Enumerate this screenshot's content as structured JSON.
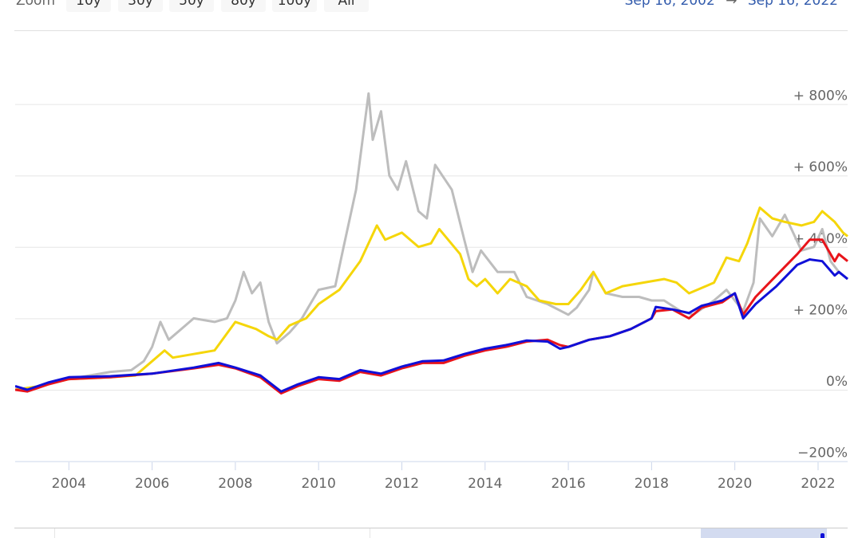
{
  "toolbar": {
    "zoom_label": "Zoom",
    "buttons": [
      "10y",
      "30y",
      "50y",
      "80y",
      "100y",
      "All"
    ],
    "range_from": "Sep 16, 2002",
    "range_arrow": "→",
    "range_to": "Sep 16, 2022"
  },
  "chart_data": {
    "type": "line",
    "title": "",
    "xlabel": "",
    "ylabel": "",
    "xlim": [
      2002.71,
      2022.71
    ],
    "ylim": [
      -200,
      900
    ],
    "grid": true,
    "legend": "none",
    "x_ticks": [
      "2004",
      "2006",
      "2008",
      "2010",
      "2012",
      "2014",
      "2016",
      "2018",
      "2020",
      "2022"
    ],
    "x_tick_values": [
      2004,
      2006,
      2008,
      2010,
      2012,
      2014,
      2016,
      2018,
      2020,
      2022
    ],
    "y_ticks": [
      "+ 800%",
      "+ 600%",
      "+ 400%",
      "+ 200%",
      "0%",
      "−200%"
    ],
    "y_tick_values": [
      800,
      600,
      400,
      200,
      0,
      -200
    ],
    "series": [
      {
        "name": "gray",
        "color": "#bdbdbd",
        "points": [
          [
            2002.71,
            0
          ],
          [
            2003.3,
            10
          ],
          [
            2004,
            30
          ],
          [
            2004.5,
            40
          ],
          [
            2005,
            50
          ],
          [
            2005.5,
            55
          ],
          [
            2005.8,
            80
          ],
          [
            2006,
            120
          ],
          [
            2006.2,
            190
          ],
          [
            2006.4,
            140
          ],
          [
            2006.6,
            160
          ],
          [
            2006.8,
            180
          ],
          [
            2007,
            200
          ],
          [
            2007.5,
            190
          ],
          [
            2007.8,
            200
          ],
          [
            2008,
            250
          ],
          [
            2008.2,
            330
          ],
          [
            2008.4,
            270
          ],
          [
            2008.6,
            300
          ],
          [
            2008.8,
            190
          ],
          [
            2009,
            130
          ],
          [
            2009.3,
            160
          ],
          [
            2009.6,
            200
          ],
          [
            2009.8,
            240
          ],
          [
            2010,
            280
          ],
          [
            2010.4,
            290
          ],
          [
            2010.6,
            400
          ],
          [
            2010.9,
            560
          ],
          [
            2011.2,
            830
          ],
          [
            2011.3,
            700
          ],
          [
            2011.5,
            780
          ],
          [
            2011.7,
            600
          ],
          [
            2011.9,
            560
          ],
          [
            2012.1,
            640
          ],
          [
            2012.4,
            500
          ],
          [
            2012.6,
            480
          ],
          [
            2012.8,
            630
          ],
          [
            2013.2,
            560
          ],
          [
            2013.5,
            420
          ],
          [
            2013.7,
            330
          ],
          [
            2013.9,
            390
          ],
          [
            2014.3,
            330
          ],
          [
            2014.7,
            330
          ],
          [
            2015,
            260
          ],
          [
            2015.5,
            240
          ],
          [
            2016,
            210
          ],
          [
            2016.2,
            230
          ],
          [
            2016.5,
            280
          ],
          [
            2016.6,
            330
          ],
          [
            2016.9,
            270
          ],
          [
            2017.3,
            260
          ],
          [
            2017.7,
            260
          ],
          [
            2018,
            250
          ],
          [
            2018.3,
            250
          ],
          [
            2018.7,
            220
          ],
          [
            2019,
            210
          ],
          [
            2019.5,
            250
          ],
          [
            2019.8,
            280
          ],
          [
            2020.2,
            220
          ],
          [
            2020.45,
            300
          ],
          [
            2020.6,
            480
          ],
          [
            2020.9,
            430
          ],
          [
            2021.2,
            490
          ],
          [
            2021.4,
            440
          ],
          [
            2021.6,
            390
          ],
          [
            2021.9,
            400
          ],
          [
            2022.1,
            450
          ],
          [
            2022.3,
            360
          ],
          [
            2022.5,
            330
          ],
          [
            2022.71,
            310
          ]
        ]
      },
      {
        "name": "yellow",
        "color": "#f5d60a",
        "points": [
          [
            2002.71,
            0
          ],
          [
            2003.3,
            10
          ],
          [
            2004,
            30
          ],
          [
            2005,
            35
          ],
          [
            2005.6,
            40
          ],
          [
            2006,
            80
          ],
          [
            2006.3,
            110
          ],
          [
            2006.5,
            90
          ],
          [
            2007,
            100
          ],
          [
            2007.5,
            110
          ],
          [
            2008,
            190
          ],
          [
            2008.5,
            170
          ],
          [
            2008.8,
            150
          ],
          [
            2009,
            140
          ],
          [
            2009.3,
            180
          ],
          [
            2009.7,
            200
          ],
          [
            2010,
            240
          ],
          [
            2010.5,
            280
          ],
          [
            2011,
            360
          ],
          [
            2011.4,
            460
          ],
          [
            2011.6,
            420
          ],
          [
            2012,
            440
          ],
          [
            2012.4,
            400
          ],
          [
            2012.7,
            410
          ],
          [
            2012.9,
            450
          ],
          [
            2013.4,
            380
          ],
          [
            2013.6,
            310
          ],
          [
            2013.8,
            290
          ],
          [
            2014,
            310
          ],
          [
            2014.3,
            270
          ],
          [
            2014.6,
            310
          ],
          [
            2015,
            290
          ],
          [
            2015.3,
            250
          ],
          [
            2015.7,
            240
          ],
          [
            2016,
            240
          ],
          [
            2016.3,
            280
          ],
          [
            2016.6,
            330
          ],
          [
            2016.9,
            270
          ],
          [
            2017.3,
            290
          ],
          [
            2017.8,
            300
          ],
          [
            2018.3,
            310
          ],
          [
            2018.6,
            300
          ],
          [
            2018.9,
            270
          ],
          [
            2019.5,
            300
          ],
          [
            2019.8,
            370
          ],
          [
            2020.1,
            360
          ],
          [
            2020.3,
            410
          ],
          [
            2020.6,
            510
          ],
          [
            2020.9,
            480
          ],
          [
            2021.2,
            470
          ],
          [
            2021.6,
            460
          ],
          [
            2021.9,
            470
          ],
          [
            2022.1,
            500
          ],
          [
            2022.4,
            470
          ],
          [
            2022.6,
            440
          ],
          [
            2022.71,
            430
          ]
        ]
      },
      {
        "name": "red",
        "color": "#e8141a",
        "points": [
          [
            2002.71,
            0
          ],
          [
            2003,
            -5
          ],
          [
            2003.5,
            15
          ],
          [
            2004,
            30
          ],
          [
            2005,
            35
          ],
          [
            2006,
            45
          ],
          [
            2007,
            60
          ],
          [
            2007.6,
            70
          ],
          [
            2008,
            60
          ],
          [
            2008.6,
            35
          ],
          [
            2009.1,
            -10
          ],
          [
            2009.5,
            10
          ],
          [
            2010,
            30
          ],
          [
            2010.5,
            25
          ],
          [
            2011,
            50
          ],
          [
            2011.5,
            40
          ],
          [
            2012,
            60
          ],
          [
            2012.5,
            75
          ],
          [
            2013,
            75
          ],
          [
            2013.5,
            95
          ],
          [
            2014,
            110
          ],
          [
            2014.5,
            120
          ],
          [
            2015,
            135
          ],
          [
            2015.5,
            140
          ],
          [
            2015.8,
            125
          ],
          [
            2016,
            120
          ],
          [
            2016.5,
            140
          ],
          [
            2017,
            150
          ],
          [
            2017.5,
            170
          ],
          [
            2018,
            200
          ],
          [
            2018.1,
            220
          ],
          [
            2018.5,
            225
          ],
          [
            2018.9,
            200
          ],
          [
            2019.2,
            230
          ],
          [
            2019.7,
            245
          ],
          [
            2020,
            270
          ],
          [
            2020.2,
            210
          ],
          [
            2020.5,
            260
          ],
          [
            2021,
            320
          ],
          [
            2021.5,
            380
          ],
          [
            2021.8,
            420
          ],
          [
            2022.1,
            420
          ],
          [
            2022.4,
            360
          ],
          [
            2022.5,
            380
          ],
          [
            2022.71,
            360
          ]
        ]
      },
      {
        "name": "blue",
        "color": "#1010d8",
        "points": [
          [
            2002.71,
            10
          ],
          [
            2003,
            0
          ],
          [
            2003.5,
            20
          ],
          [
            2004,
            35
          ],
          [
            2005,
            38
          ],
          [
            2006,
            45
          ],
          [
            2007,
            62
          ],
          [
            2007.6,
            75
          ],
          [
            2008,
            62
          ],
          [
            2008.6,
            40
          ],
          [
            2009.1,
            -5
          ],
          [
            2009.5,
            15
          ],
          [
            2010,
            35
          ],
          [
            2010.5,
            30
          ],
          [
            2011,
            55
          ],
          [
            2011.5,
            45
          ],
          [
            2012,
            65
          ],
          [
            2012.5,
            80
          ],
          [
            2013,
            82
          ],
          [
            2013.5,
            100
          ],
          [
            2014,
            115
          ],
          [
            2014.5,
            125
          ],
          [
            2015,
            138
          ],
          [
            2015.5,
            135
          ],
          [
            2015.8,
            115
          ],
          [
            2016,
            120
          ],
          [
            2016.5,
            140
          ],
          [
            2017,
            150
          ],
          [
            2017.5,
            170
          ],
          [
            2018,
            200
          ],
          [
            2018.1,
            232
          ],
          [
            2018.5,
            225
          ],
          [
            2018.9,
            215
          ],
          [
            2019.2,
            235
          ],
          [
            2019.7,
            250
          ],
          [
            2020,
            270
          ],
          [
            2020.2,
            200
          ],
          [
            2020.5,
            240
          ],
          [
            2021,
            290
          ],
          [
            2021.5,
            350
          ],
          [
            2021.8,
            365
          ],
          [
            2022.1,
            360
          ],
          [
            2022.4,
            320
          ],
          [
            2022.5,
            330
          ],
          [
            2022.71,
            310
          ]
        ]
      }
    ]
  }
}
